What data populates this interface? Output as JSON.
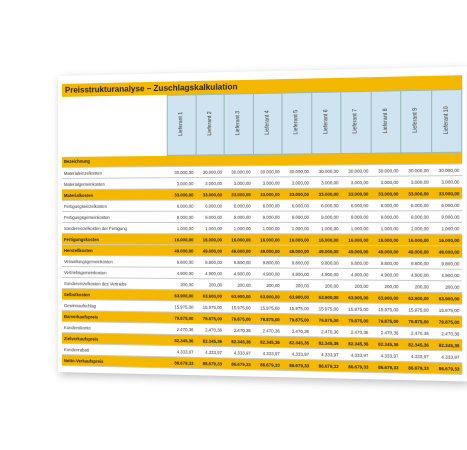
{
  "title": "Preisstrukturanalyse – Zuschlagskalkulation",
  "table": {
    "columns": [
      "Lieferant 1",
      "Lieferant 2",
      "Lieferant 3",
      "Lieferant 4",
      "Lieferant 5",
      "Lieferant 6",
      "Lieferant 7",
      "Lieferant 8",
      "Lieferant 9",
      "Lieferant 10"
    ],
    "header_label": "Bezeichnung",
    "rows": [
      {
        "label": "Materialeinzelkosten",
        "values": [
          "30.000,00",
          "30.000,00",
          "30.000,00",
          "30.000,00",
          "30.000,00",
          "30.000,00",
          "30.000,00",
          "30.000,00",
          "30.000,00",
          "30.000,00"
        ]
      },
      {
        "label": "Materialgemeinkosten",
        "values": [
          "3.000,00",
          "3.000,00",
          "3.000,00",
          "3.000,00",
          "3.000,00",
          "3.000,00",
          "3.000,00",
          "3.000,00",
          "3.000,00",
          "3.000,00"
        ]
      },
      {
        "label": "Materialkosten",
        "highlight": true,
        "values": [
          "33.000,00",
          "33.000,00",
          "33.000,00",
          "33.000,00",
          "33.000,00",
          "33.000,00",
          "33.000,00",
          "33.000,00",
          "33.000,00",
          "33.000,00"
        ]
      },
      {
        "label": "Fertigungseinzelkosten",
        "values": [
          "6.000,00",
          "6.000,00",
          "6.000,00",
          "6.000,00",
          "6.000,00",
          "6.000,00",
          "6.000,00",
          "6.000,00",
          "6.000,00",
          "6.000,00"
        ]
      },
      {
        "label": "Fertigungsgemeinkosten",
        "values": [
          "9.000,00",
          "9.000,00",
          "9.000,00",
          "9.000,00",
          "9.000,00",
          "9.000,00",
          "9.000,00",
          "9.000,00",
          "9.000,00",
          "9.000,00"
        ]
      },
      {
        "label": "Sondereinzelkosten der Fertigung",
        "values": [
          "1.000,00",
          "1.000,00",
          "1.000,00",
          "1.000,00",
          "1.000,00",
          "1.000,00",
          "1.000,00",
          "1.000,00",
          "1.000,00",
          "1.000,00"
        ]
      },
      {
        "label": "Fertigungskosten",
        "highlight": true,
        "values": [
          "16.000,00",
          "16.000,00",
          "16.000,00",
          "16.000,00",
          "16.000,00",
          "16.000,00",
          "16.000,00",
          "16.000,00",
          "16.000,00",
          "16.000,00"
        ]
      },
      {
        "label": "Herstellkosten",
        "highlight": true,
        "values": [
          "49.000,00",
          "49.000,00",
          "49.000,00",
          "49.000,00",
          "49.000,00",
          "49.000,00",
          "49.000,00",
          "49.000,00",
          "49.000,00",
          "49.000,00"
        ]
      },
      {
        "label": "Verwaltungsgemeinkosten",
        "values": [
          "9.800,00",
          "9.800,00",
          "9.800,00",
          "9.800,00",
          "9.800,00",
          "9.800,00",
          "9.800,00",
          "9.800,00",
          "9.800,00",
          "9.800,00"
        ]
      },
      {
        "label": "Vertriebsgemeinkosten",
        "values": [
          "4.900,00",
          "4.900,00",
          "4.900,00",
          "4.900,00",
          "4.900,00",
          "4.900,00",
          "4.900,00",
          "4.900,00",
          "4.900,00",
          "4.900,00"
        ]
      },
      {
        "label": "Sondereinzelkosten des Vertriebs",
        "values": [
          "200,00",
          "200,00",
          "200,00",
          "200,00",
          "200,00",
          "200,00",
          "200,00",
          "200,00",
          "200,00",
          "200,00"
        ]
      },
      {
        "label": "Selbstkosten",
        "highlight": true,
        "values": [
          "63.900,00",
          "63.900,00",
          "63.900,00",
          "63.900,00",
          "63.900,00",
          "63.900,00",
          "63.900,00",
          "63.900,00",
          "63.900,00",
          "63.900,00"
        ]
      },
      {
        "label": "Gewinnaufschlag",
        "values": [
          "15.975,00",
          "15.975,00",
          "15.975,00",
          "15.975,00",
          "15.975,00",
          "15.975,00",
          "15.975,00",
          "15.975,00",
          "15.975,00",
          "15.975,00"
        ]
      },
      {
        "label": "Barverkaufspreis",
        "highlight": true,
        "values": [
          "79.875,00",
          "79.875,00",
          "79.875,00",
          "79.875,00",
          "79.875,00",
          "79.875,00",
          "79.875,00",
          "79.875,00",
          "79.875,00",
          "79.875,00"
        ]
      },
      {
        "label": "Kundenskonto",
        "values": [
          "2.470,36",
          "2.470,36",
          "2.470,36",
          "2.470,36",
          "2.470,36",
          "2.470,36",
          "2.470,36",
          "2.470,36",
          "2.470,36",
          "2.470,36"
        ]
      },
      {
        "label": "Zielverkaufspreis",
        "highlight": true,
        "values": [
          "82.345,36",
          "82.345,36",
          "82.345,36",
          "82.345,36",
          "82.345,36",
          "82.345,36",
          "82.345,36",
          "82.345,36",
          "82.345,36",
          "82.345,36"
        ]
      },
      {
        "label": "Kundenrabatt",
        "values": [
          "4.333,97",
          "4.333,97",
          "4.333,97",
          "4.333,97",
          "4.333,97",
          "4.333,97",
          "4.333,97",
          "4.333,97",
          "4.333,97",
          "4.333,97"
        ]
      },
      {
        "label": "Netto-Verkaufspreis",
        "highlight": true,
        "values": [
          "86.679,33",
          "86.679,33",
          "86.679,33",
          "86.679,33",
          "86.679,33",
          "86.679,33",
          "86.679,33",
          "86.679,33",
          "86.679,33",
          "86.679,33"
        ]
      }
    ]
  }
}
